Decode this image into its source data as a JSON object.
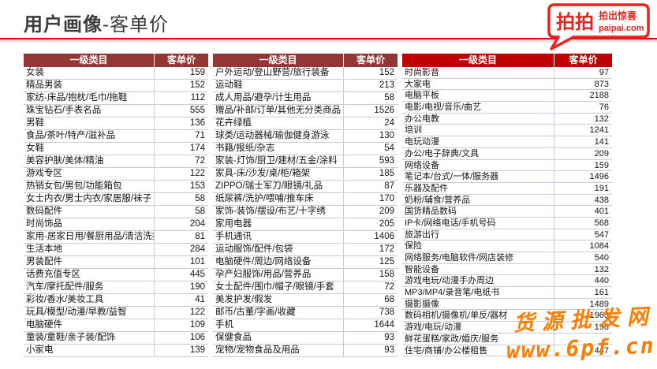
{
  "title": {
    "main": "用户画像",
    "sub": "-客单价"
  },
  "logo": {
    "name": "拍拍",
    "slogan": "拍出惊喜",
    "domain": "paipai.com",
    "color": "#e8231d"
  },
  "colors": {
    "header_maroon": "#943634",
    "header_bright_red": "#c00000",
    "grid_line": "#c3cedf",
    "title_rule": "#ee0000",
    "watermark_orange": "#ff7d00"
  },
  "table_header": {
    "category": "一级类目",
    "price": "客单价"
  },
  "tables": [
    {
      "rows": [
        [
          "女装",
          "159"
        ],
        [
          "精品男装",
          "152"
        ],
        [
          "家纺-床品/抱枕/毛巾/拖鞋",
          "112"
        ],
        [
          "珠宝钻石/手表名品",
          "555"
        ],
        [
          "男鞋",
          "136"
        ],
        [
          "食品/茶叶/特产/滋补品",
          "71"
        ],
        [
          "女鞋",
          "174"
        ],
        [
          "美容护肤/美体/精油",
          "72"
        ],
        [
          "游戏专区",
          "122"
        ],
        [
          "热销女包/男包/功能箱包",
          "153"
        ],
        [
          "女士内衣/男士内衣/家居服/袜子",
          "58"
        ],
        [
          "数码配件",
          "58"
        ],
        [
          "时尚饰品",
          "204"
        ],
        [
          "家用-居家日用/餐厨用品/清洁洗护",
          "81"
        ],
        [
          "生活本地",
          "284"
        ],
        [
          "男装配件",
          "101"
        ],
        [
          "话费充值专区",
          "445"
        ],
        [
          "汽车/摩托配件/服务",
          "190"
        ],
        [
          "彩妆/香水/美妆工具",
          "41"
        ],
        [
          "玩具/模型/动漫/早教/益智",
          "122"
        ],
        [
          "电脑硬件",
          "109"
        ],
        [
          "童装/童鞋/亲子装/配饰",
          "106"
        ],
        [
          "小家电",
          "139"
        ]
      ]
    },
    {
      "rows": [
        [
          "户外运动/登山野营/旅行装备",
          "152"
        ],
        [
          "运动鞋",
          "213"
        ],
        [
          "成人用品/避孕/计生用品",
          "58"
        ],
        [
          "赠品/补邮/订单/其他无分类商品",
          "1526"
        ],
        [
          "花卉绿植",
          "24"
        ],
        [
          "球类/运动器械/瑜伽健身游泳",
          "130"
        ],
        [
          "书籍/报纸/杂志",
          "54"
        ],
        [
          "家装-灯饰/厨卫/建材/五金/涂料",
          "593"
        ],
        [
          "家具-床/沙发/桌/柜/箱架",
          "185"
        ],
        [
          "ZIPPO/瑞士军刀/眼镜/礼品",
          "87"
        ],
        [
          "纸尿裤/洗护/喂哺/推车床",
          "170"
        ],
        [
          "家饰-装饰/摆设/布艺/十字绣",
          "209"
        ],
        [
          "家用电器",
          "205"
        ],
        [
          "手机通讯",
          "1406"
        ],
        [
          "运动服饰/配件/包袋",
          "172"
        ],
        [
          "电脑硬件/周边/网络设备",
          "125"
        ],
        [
          "孕产妇服饰/用品/营养品",
          "158"
        ],
        [
          "女士配件/围巾/帽子/眼镜/手套",
          "72"
        ],
        [
          "美发护发/假发",
          "68"
        ],
        [
          "邮币/古董/字画/收藏",
          "738"
        ],
        [
          "手机",
          "1644"
        ],
        [
          "保健食品",
          "93"
        ],
        [
          "宠物/宠物食品及用品",
          "93"
        ]
      ]
    },
    {
      "rows": [
        [
          "时尚影音",
          "97"
        ],
        [
          "大家电",
          "873"
        ],
        [
          "电脑平板",
          "2188"
        ],
        [
          "电影/电视/音乐/曲艺",
          "76"
        ],
        [
          "办公电教",
          "132"
        ],
        [
          "培训",
          "1241"
        ],
        [
          "电玩动漫",
          "141"
        ],
        [
          "办公/电子辞典/文具",
          "209"
        ],
        [
          "网络设备",
          "159"
        ],
        [
          "笔记本/台式/一体/服务器",
          "1496"
        ],
        [
          "乐器及配件",
          "191"
        ],
        [
          "奶粉/辅食/营养品",
          "438"
        ],
        [
          "国货精品数码",
          "401"
        ],
        [
          "IP卡/网络电话/手机号码",
          "568"
        ],
        [
          "旅游出行",
          "547"
        ],
        [
          "保险",
          "1084"
        ],
        [
          "网络服务/电脑软件/网店装修",
          "540"
        ],
        [
          "智能设备",
          "132"
        ],
        [
          "游戏电玩/动漫手办周边",
          "440"
        ],
        [
          "MP3/MP4/录音笔/电纸书",
          "161"
        ],
        [
          "摄影摄像",
          "1489"
        ],
        [
          "数码相机/摄像机/单反/器材",
          "1963"
        ],
        [
          "游戏/电玩/动漫",
          "198"
        ],
        [
          "鲜花蛋糕/家政/婚庆/服务",
          ""
        ],
        [
          "住宅/商铺/办公楼租售",
          "447"
        ]
      ]
    }
  ],
  "watermark": {
    "line1": "货源批发网",
    "line2": "www.6pf.cn"
  }
}
